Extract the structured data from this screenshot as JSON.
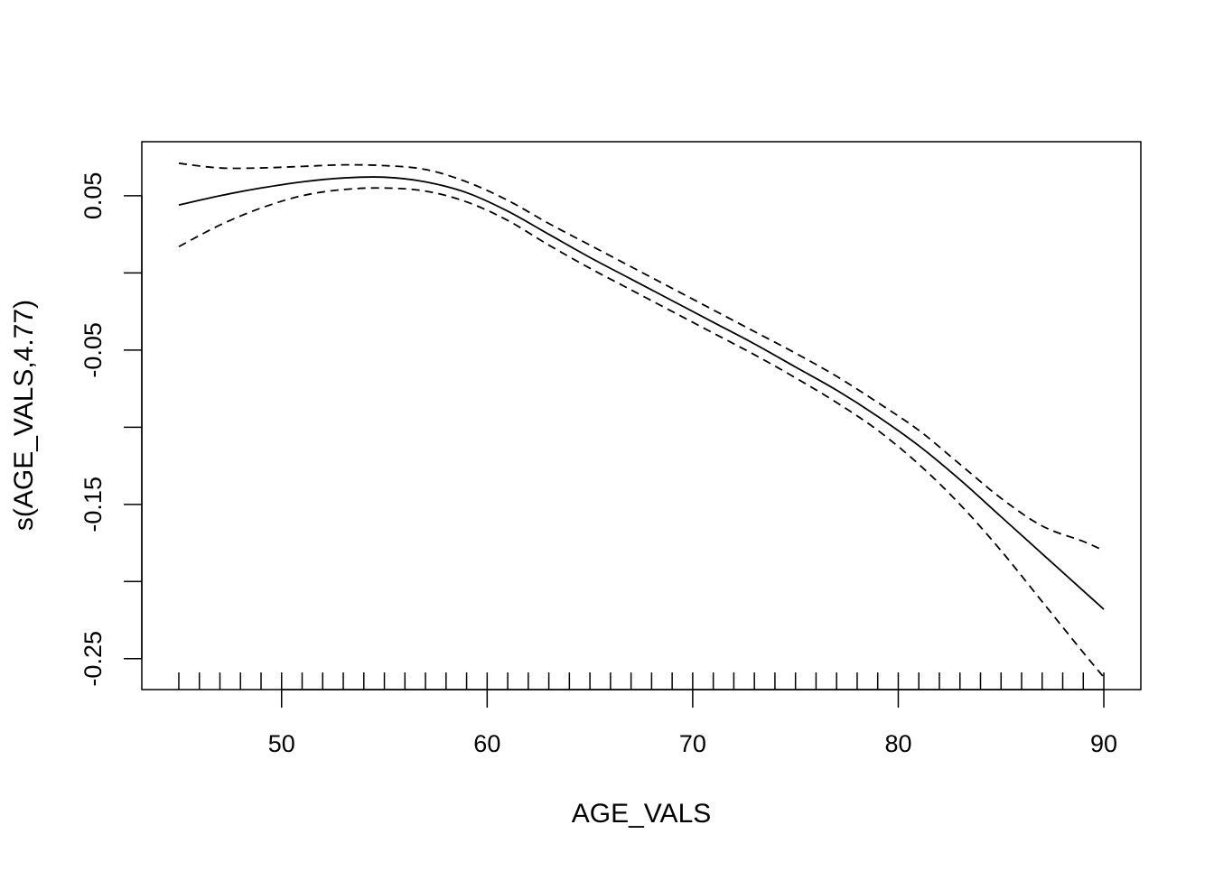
{
  "chart_data": {
    "type": "line",
    "title": "",
    "xlabel": "AGE_VALS",
    "ylabel": "s(AGE_VALS,4.77)",
    "xlim": [
      43.2,
      91.8
    ],
    "ylim": [
      -0.27,
      0.085
    ],
    "x_ticks": [
      50,
      60,
      70,
      80,
      90
    ],
    "x_tick_labels": [
      "50",
      "60",
      "70",
      "80",
      "90"
    ],
    "y_ticks": [
      0.05,
      0.0,
      -0.05,
      -0.1,
      -0.15,
      -0.2,
      -0.25
    ],
    "y_tick_labels": [
      "0.05",
      "",
      "-0.05",
      "",
      "-0.15",
      "",
      "-0.25"
    ],
    "grid": false,
    "legend": "none",
    "rug": [
      45,
      46,
      47,
      48,
      49,
      50,
      51,
      52,
      53,
      54,
      55,
      56,
      57,
      58,
      59,
      60,
      61,
      62,
      63,
      64,
      65,
      66,
      67,
      68,
      69,
      70,
      71,
      72,
      73,
      74,
      75,
      76,
      77,
      78,
      79,
      80,
      81,
      82,
      83,
      84,
      85,
      86,
      87,
      88,
      89,
      90
    ],
    "series": [
      {
        "role": "estimate",
        "style": "solid",
        "x": [
          45,
          47,
          49,
          51,
          53,
          55,
          57,
          59,
          61,
          63,
          65,
          67,
          69,
          71,
          73,
          75,
          77,
          79,
          81,
          83,
          85,
          87,
          89,
          90
        ],
        "y": [
          0.044,
          0.05,
          0.055,
          0.059,
          0.0615,
          0.062,
          0.059,
          0.052,
          0.04,
          0.025,
          0.01,
          -0.004,
          -0.018,
          -0.032,
          -0.046,
          -0.061,
          -0.076,
          -0.093,
          -0.112,
          -0.134,
          -0.158,
          -0.182,
          -0.206,
          -0.218
        ]
      },
      {
        "role": "upper",
        "style": "dashed",
        "x": [
          45,
          47,
          49,
          51,
          53,
          55,
          57,
          59,
          61,
          63,
          65,
          67,
          69,
          71,
          73,
          75,
          77,
          79,
          81,
          83,
          85,
          87,
          89,
          90
        ],
        "y": [
          0.071,
          0.068,
          0.068,
          0.069,
          0.07,
          0.0695,
          0.067,
          0.059,
          0.047,
          0.032,
          0.018,
          0.004,
          -0.01,
          -0.024,
          -0.038,
          -0.052,
          -0.067,
          -0.084,
          -0.102,
          -0.124,
          -0.146,
          -0.164,
          -0.174,
          -0.18
        ]
      },
      {
        "role": "lower",
        "style": "dashed",
        "x": [
          45,
          47,
          49,
          51,
          53,
          55,
          57,
          59,
          61,
          63,
          65,
          67,
          69,
          71,
          73,
          75,
          77,
          79,
          81,
          83,
          85,
          87,
          89,
          90
        ],
        "y": [
          0.017,
          0.031,
          0.042,
          0.05,
          0.054,
          0.055,
          0.053,
          0.046,
          0.034,
          0.018,
          0.003,
          -0.011,
          -0.025,
          -0.039,
          -0.053,
          -0.068,
          -0.084,
          -0.102,
          -0.124,
          -0.15,
          -0.18,
          -0.213,
          -0.246,
          -0.262
        ]
      }
    ]
  }
}
